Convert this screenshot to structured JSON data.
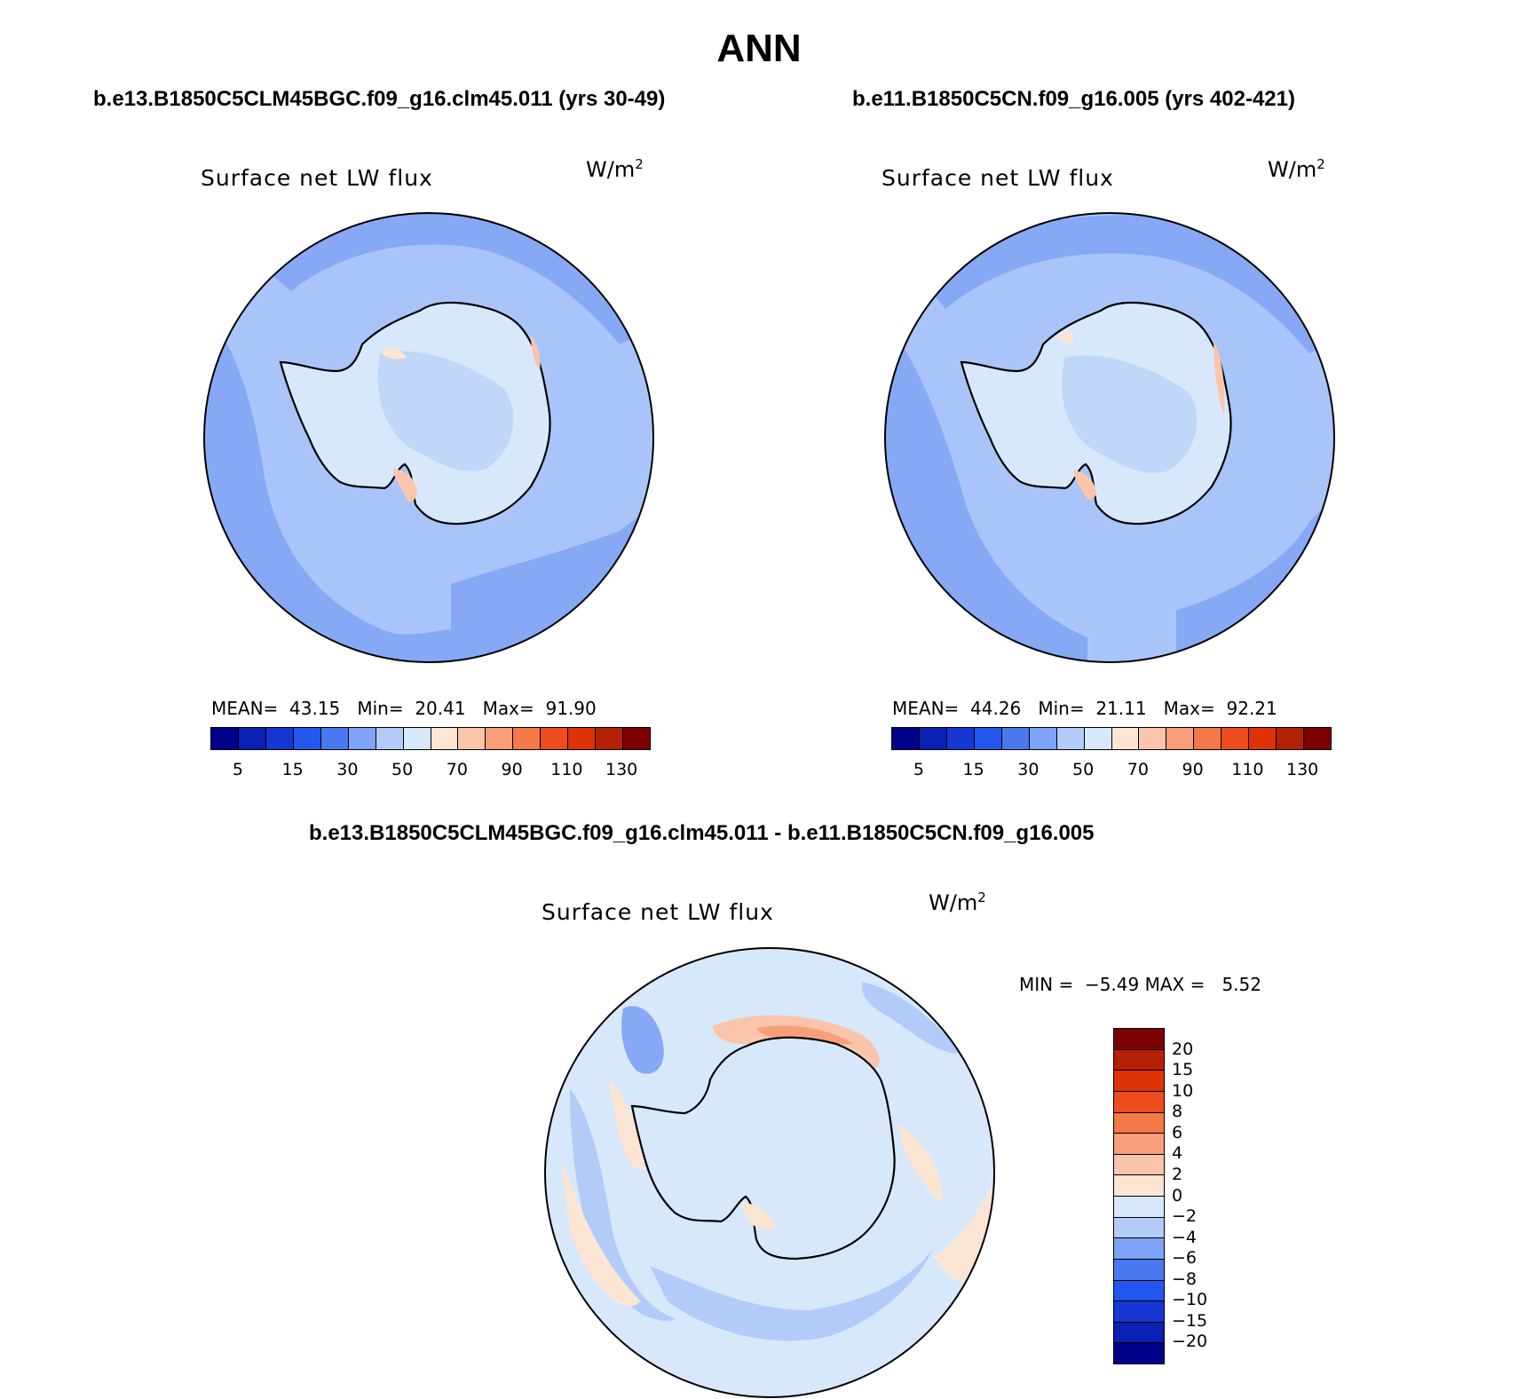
{
  "title": "ANN",
  "panels": [
    {
      "case": "b.e13.B1850C5CLM45BGC.f09_g16.clm45.011 (yrs 30-49)",
      "variable": "Surface net LW flux",
      "units": "W/m",
      "units_exp": "2",
      "mean_label": "MEAN=",
      "mean": "43.15",
      "min_label": "Min=",
      "min": "20.41",
      "max_label": "Max=",
      "max": "91.90"
    },
    {
      "case": "b.e11.B1850C5CN.f09_g16.005 (yrs 402-421)",
      "variable": "Surface net LW flux",
      "units": "W/m",
      "units_exp": "2",
      "mean_label": "MEAN=",
      "mean": "44.26",
      "min_label": "Min=",
      "min": "21.11",
      "max_label": "Max=",
      "max": "92.21"
    }
  ],
  "diff_panel": {
    "case": "b.e13.B1850C5CLM45BGC.f09_g16.clm45.011 - b.e11.B1850C5CN.f09_g16.005",
    "variable": "Surface net LW flux",
    "units": "W/m",
    "units_exp": "2",
    "min_label": "MIN =",
    "min": "−5.49",
    "max_label": "MAX =",
    "max": "5.52"
  },
  "colorbar_abs": {
    "colors": [
      "#00008b",
      "#0a1fb4",
      "#1637d4",
      "#2356ec",
      "#4a78ee",
      "#7fa3f6",
      "#b2cbf9",
      "#d8e8fb",
      "#fde5d3",
      "#fbc5ac",
      "#f89f7a",
      "#f47848",
      "#ee4b1e",
      "#dd3306",
      "#b42004",
      "#7d0000"
    ],
    "tick_labels": [
      "5",
      "15",
      "30",
      "50",
      "70",
      "90",
      "110",
      "130"
    ]
  },
  "colorbar_diff": {
    "colors": [
      "#7d0000",
      "#b42004",
      "#dd3306",
      "#ee4b1e",
      "#f47848",
      "#f89f7a",
      "#fbc5ac",
      "#fde5d3",
      "#d8e8fb",
      "#b2cbf9",
      "#7fa3f6",
      "#4a78ee",
      "#2356ec",
      "#1637d4",
      "#0a1fb4",
      "#00008b"
    ],
    "tick_labels": [
      "20",
      "15",
      "10",
      "8",
      "6",
      "4",
      "2",
      "0",
      "−2",
      "−4",
      "−6",
      "−8",
      "−10",
      "−15",
      "−20"
    ]
  },
  "field_colors": {
    "ocean_mid": "#a9c4f8",
    "ocean_dark": "#86a8f5",
    "land": "#d8e8fb",
    "land_mid": "#b2cbf9",
    "warm": "#fbc5ac",
    "warm_light": "#fde5d3",
    "diff_base": "#d8e8fb",
    "diff_blue": "#b2cbf9",
    "diff_blue_dark": "#86a8f5",
    "diff_warm": "#fde5d3",
    "diff_warm_mid": "#fbc5ac",
    "diff_hot": "#f89f7a"
  }
}
